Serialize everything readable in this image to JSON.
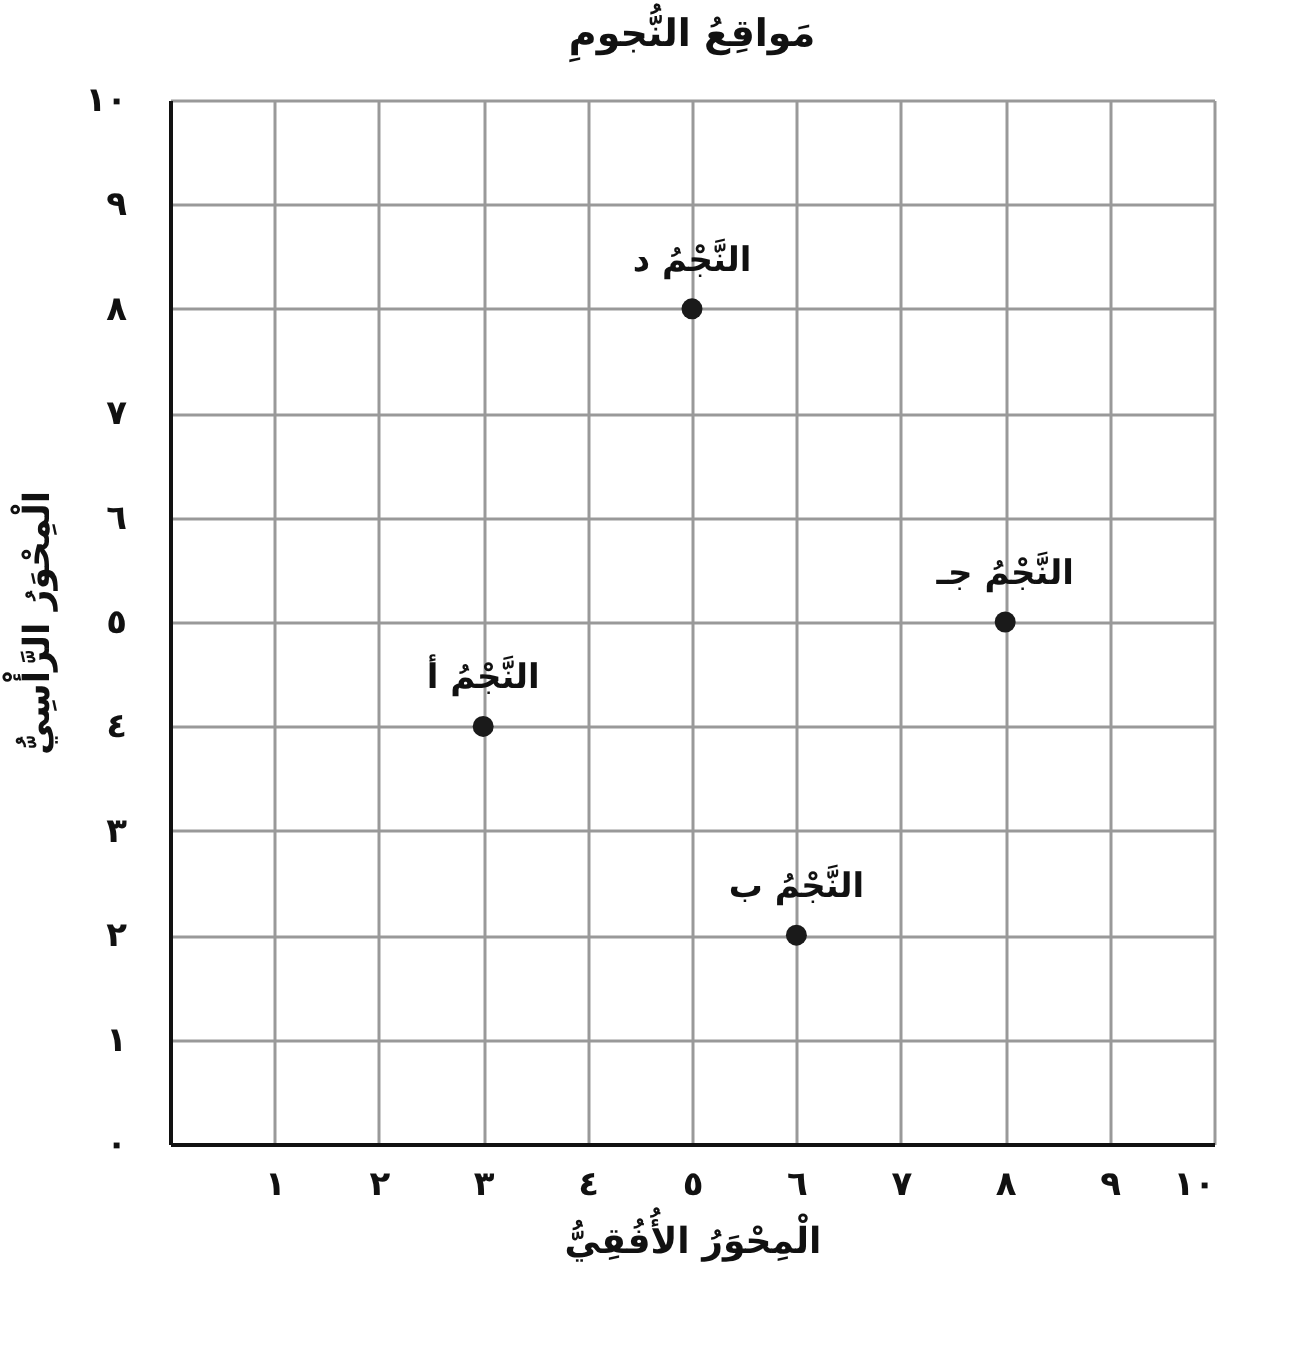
{
  "chart_data": {
    "type": "scatter",
    "title": "مَواقِعُ النُّجومِ",
    "xlabel": "الْمِحْوَرُ الأُفُقِيُّ",
    "ylabel": "الْمِحْوَرُ الرَّأْسِيُّ",
    "x": [
      3,
      6,
      8,
      5
    ],
    "series": [
      {
        "color": "#1a1a1a",
        "values": [
          4,
          2,
          5,
          8
        ]
      }
    ],
    "xlim": [
      0,
      10
    ],
    "ylim": [
      0,
      10
    ],
    "xticks": [
      {
        "value": 0,
        "label": null
      },
      {
        "value": 1,
        "label": "١"
      },
      {
        "value": 2,
        "label": "٢"
      },
      {
        "value": 3,
        "label": "٣"
      },
      {
        "value": 4,
        "label": "٤"
      },
      {
        "value": 5,
        "label": "٥"
      },
      {
        "value": 6,
        "label": "٦"
      },
      {
        "value": 7,
        "label": "٧"
      },
      {
        "value": 8,
        "label": "٨"
      },
      {
        "value": 9,
        "label": "٩"
      },
      {
        "value": 10,
        "label": "١٠"
      }
    ],
    "yticks": [
      {
        "value": 0,
        "label": "٠"
      },
      {
        "value": 1,
        "label": "١"
      },
      {
        "value": 2,
        "label": "٢"
      },
      {
        "value": 3,
        "label": "٣"
      },
      {
        "value": 4,
        "label": "٤"
      },
      {
        "value": 5,
        "label": "٥"
      },
      {
        "value": 6,
        "label": "٦"
      },
      {
        "value": 7,
        "label": "٧"
      },
      {
        "value": 8,
        "label": "٨"
      },
      {
        "value": 9,
        "label": "٩"
      },
      {
        "value": 10,
        "label": "١٠"
      }
    ],
    "grid": true,
    "marker": "circle",
    "annotations": [
      {
        "text": "النَّجْمُ أ",
        "x": 3,
        "y": 4
      },
      {
        "text": "النَّجْمُ ب",
        "x": 6,
        "y": 2
      },
      {
        "text": "النَّجْمُ جـ",
        "x": 8,
        "y": 5
      },
      {
        "text": "النَّجْمُ د",
        "x": 5,
        "y": 8
      }
    ]
  }
}
